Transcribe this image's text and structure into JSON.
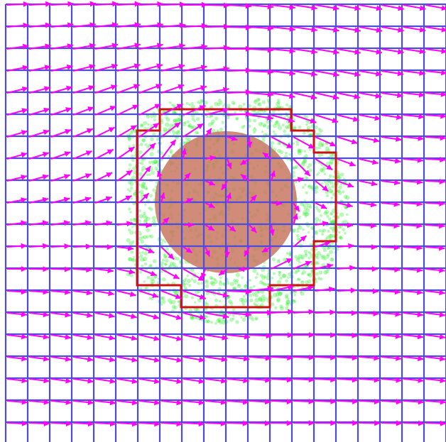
{
  "colors": {
    "background": "#ffffff",
    "grid": "#4b4bdc",
    "vector": "#ff00ff",
    "particles": "#33ee33",
    "obstacle_fill": "#c87860",
    "boundary": "#cc1111"
  },
  "grid": {
    "cols": 20,
    "rows": 20
  },
  "field": {
    "free_stream_direction": "left-to-right",
    "vector_style": "arrow-with-head"
  },
  "obstacle": {
    "shape": "circle",
    "label_visible": false
  },
  "boundary": {
    "shape": "staircase-outline"
  },
  "particles": {
    "description_visible": false
  }
}
